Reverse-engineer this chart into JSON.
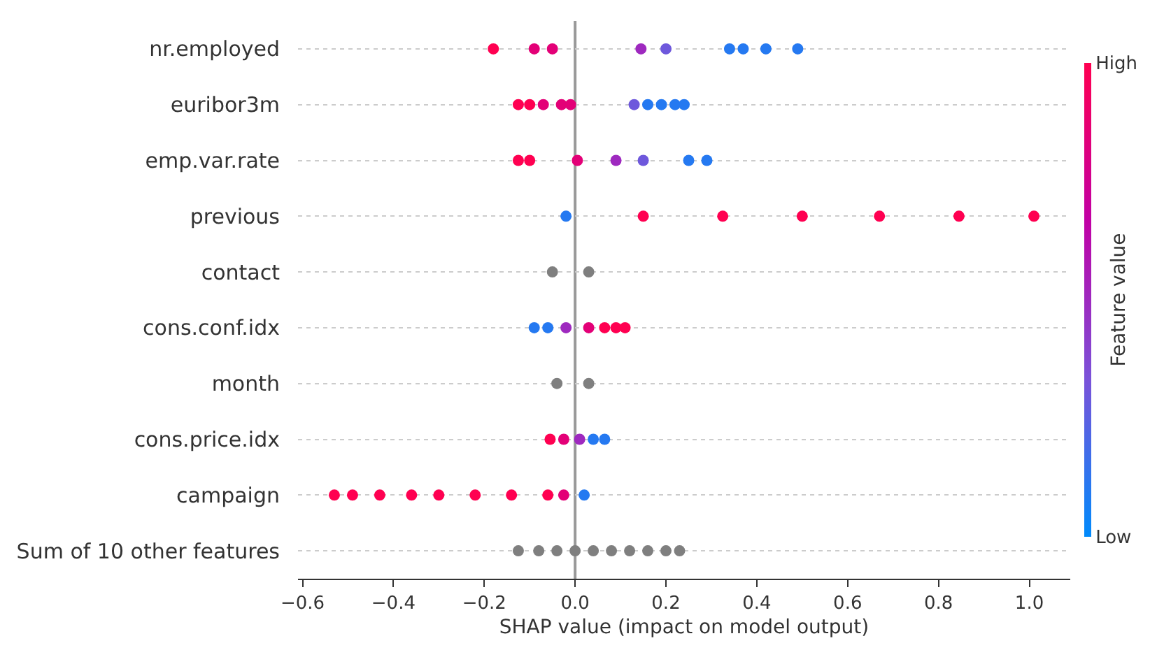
{
  "chart_data": {
    "type": "scatter",
    "orientation": "horizontal",
    "xlabel": "SHAP value (impact on model output)",
    "clabel": "Feature value",
    "categories": [
      "nr.employed",
      "euribor3m",
      "emp.var.rate",
      "previous",
      "contact",
      "cons.conf.idx",
      "month",
      "cons.price.idx",
      "campaign",
      "Sum of 10 other features"
    ],
    "xlim": [
      -0.61,
      1.09
    ],
    "xticks": [
      {
        "value": -0.6,
        "label": "−0.6"
      },
      {
        "value": -0.4,
        "label": "−0.4"
      },
      {
        "value": -0.2,
        "label": "−0.2"
      },
      {
        "value": 0,
        "label": "0.0"
      },
      {
        "value": 0.2,
        "label": "0.2"
      },
      {
        "value": 0.4,
        "label": "0.4"
      },
      {
        "value": 0.6,
        "label": "0.6"
      },
      {
        "value": 0.8,
        "label": "0.8"
      },
      {
        "value": 1.0,
        "label": "1.0"
      }
    ],
    "clim": [
      0,
      1
    ],
    "cticks": [
      {
        "value": 0,
        "label": "Low"
      },
      {
        "value": 1,
        "label": "High"
      }
    ],
    "series": [
      {
        "values": [
          -0.18,
          -0.125,
          -0.125,
          0.15,
          null,
          0.065,
          null,
          -0.055,
          -0.53,
          null
        ],
        "cvalues": [
          1,
          1,
          1,
          1,
          null,
          1,
          null,
          1,
          1,
          null
        ]
      },
      {
        "values": [
          null,
          -0.1,
          -0.1,
          0.325,
          null,
          0.09,
          null,
          null,
          -0.49,
          null
        ],
        "cvalues": [
          null,
          1,
          1,
          1,
          null,
          1,
          null,
          null,
          1,
          null
        ]
      },
      {
        "values": [
          null,
          null,
          null,
          0.5,
          null,
          0.11,
          null,
          null,
          -0.43,
          null
        ],
        "cvalues": [
          null,
          null,
          null,
          1,
          null,
          1,
          null,
          null,
          1,
          null
        ]
      },
      {
        "values": [
          null,
          null,
          null,
          0.67,
          null,
          null,
          null,
          null,
          -0.36,
          null
        ],
        "cvalues": [
          null,
          null,
          null,
          1,
          null,
          null,
          null,
          null,
          1,
          null
        ]
      },
      {
        "values": [
          null,
          null,
          null,
          0.845,
          null,
          null,
          null,
          null,
          -0.3,
          null
        ],
        "cvalues": [
          null,
          null,
          null,
          1,
          null,
          null,
          null,
          null,
          1,
          null
        ]
      },
      {
        "values": [
          null,
          null,
          null,
          1.01,
          null,
          null,
          null,
          null,
          -0.22,
          null
        ],
        "cvalues": [
          null,
          null,
          null,
          1,
          null,
          null,
          null,
          null,
          1,
          null
        ]
      },
      {
        "values": [
          null,
          null,
          null,
          null,
          null,
          null,
          null,
          null,
          -0.14,
          null
        ],
        "cvalues": [
          null,
          null,
          null,
          null,
          null,
          null,
          null,
          null,
          1,
          null
        ]
      },
      {
        "values": [
          null,
          null,
          null,
          null,
          null,
          null,
          null,
          null,
          -0.06,
          null
        ],
        "cvalues": [
          null,
          null,
          null,
          null,
          null,
          null,
          null,
          null,
          1,
          null
        ]
      },
      {
        "values": [
          -0.09,
          -0.07,
          0.005,
          null,
          null,
          0.03,
          null,
          -0.025,
          -0.025,
          null
        ],
        "cvalues": [
          0.85,
          0.85,
          0.85,
          null,
          null,
          0.85,
          null,
          0.85,
          0.85,
          null
        ]
      },
      {
        "values": [
          -0.05,
          -0.03,
          null,
          null,
          null,
          null,
          null,
          null,
          null,
          null
        ],
        "cvalues": [
          0.85,
          0.85,
          null,
          null,
          null,
          null,
          null,
          null,
          null,
          null
        ]
      },
      {
        "values": [
          null,
          -0.01,
          null,
          null,
          null,
          null,
          null,
          null,
          null,
          null
        ],
        "cvalues": [
          null,
          0.85,
          null,
          null,
          null,
          null,
          null,
          null,
          null,
          null
        ]
      },
      {
        "values": [
          0.145,
          null,
          0.09,
          null,
          null,
          -0.02,
          null,
          0.01,
          null,
          null
        ],
        "cvalues": [
          0.5,
          null,
          0.5,
          null,
          null,
          0.5,
          null,
          0.5,
          null,
          null
        ]
      },
      {
        "values": [
          0.2,
          0.13,
          0.15,
          null,
          null,
          null,
          null,
          null,
          null,
          null
        ],
        "cvalues": [
          0.3,
          0.3,
          0.3,
          null,
          null,
          null,
          null,
          null,
          null,
          null
        ]
      },
      {
        "values": [
          0.34,
          0.16,
          0.25,
          -0.02,
          null,
          -0.09,
          null,
          0.04,
          0.02,
          null
        ],
        "cvalues": [
          0.1,
          0.1,
          0.1,
          0.1,
          null,
          0.1,
          null,
          0.1,
          0.1,
          null
        ]
      },
      {
        "values": [
          0.37,
          0.19,
          0.29,
          null,
          null,
          -0.06,
          null,
          0.065,
          null,
          null
        ],
        "cvalues": [
          0.1,
          0.1,
          0.1,
          null,
          null,
          0.1,
          null,
          0.1,
          null,
          null
        ]
      },
      {
        "values": [
          0.42,
          0.22,
          null,
          null,
          null,
          null,
          null,
          null,
          null,
          null
        ],
        "cvalues": [
          0.1,
          0.1,
          null,
          null,
          null,
          null,
          null,
          null,
          null,
          null
        ]
      },
      {
        "values": [
          0.49,
          0.24,
          null,
          null,
          null,
          null,
          null,
          null,
          null,
          null
        ],
        "cvalues": [
          0.1,
          0.1,
          null,
          null,
          null,
          null,
          null,
          null,
          null,
          null
        ]
      },
      {
        "color": "#7f7f7f",
        "values": [
          null,
          null,
          null,
          null,
          -0.05,
          null,
          -0.04,
          null,
          null,
          -0.125
        ]
      },
      {
        "color": "#7f7f7f",
        "values": [
          null,
          null,
          null,
          null,
          0.03,
          null,
          0.03,
          null,
          null,
          -0.08
        ]
      },
      {
        "color": "#7f7f7f",
        "values": [
          null,
          null,
          null,
          null,
          null,
          null,
          null,
          null,
          null,
          -0.04
        ]
      },
      {
        "color": "#7f7f7f",
        "values": [
          null,
          null,
          null,
          null,
          null,
          null,
          null,
          null,
          null,
          0
        ]
      },
      {
        "color": "#7f7f7f",
        "values": [
          null,
          null,
          null,
          null,
          null,
          null,
          null,
          null,
          null,
          0.04
        ]
      },
      {
        "color": "#7f7f7f",
        "values": [
          null,
          null,
          null,
          null,
          null,
          null,
          null,
          null,
          null,
          0.08
        ]
      },
      {
        "color": "#7f7f7f",
        "values": [
          null,
          null,
          null,
          null,
          null,
          null,
          null,
          null,
          null,
          0.12
        ]
      },
      {
        "color": "#7f7f7f",
        "values": [
          null,
          null,
          null,
          null,
          null,
          null,
          null,
          null,
          null,
          0.16
        ]
      },
      {
        "color": "#7f7f7f",
        "values": [
          null,
          null,
          null,
          null,
          null,
          null,
          null,
          null,
          null,
          0.2
        ]
      },
      {
        "color": "#7f7f7f",
        "values": [
          null,
          null,
          null,
          null,
          null,
          null,
          null,
          null,
          null,
          0.23
        ]
      }
    ],
    "ref_lines": [
      {
        "axis": "x",
        "value": 0,
        "color": "#999999"
      }
    ],
    "grid": "y",
    "marker": "circle"
  }
}
